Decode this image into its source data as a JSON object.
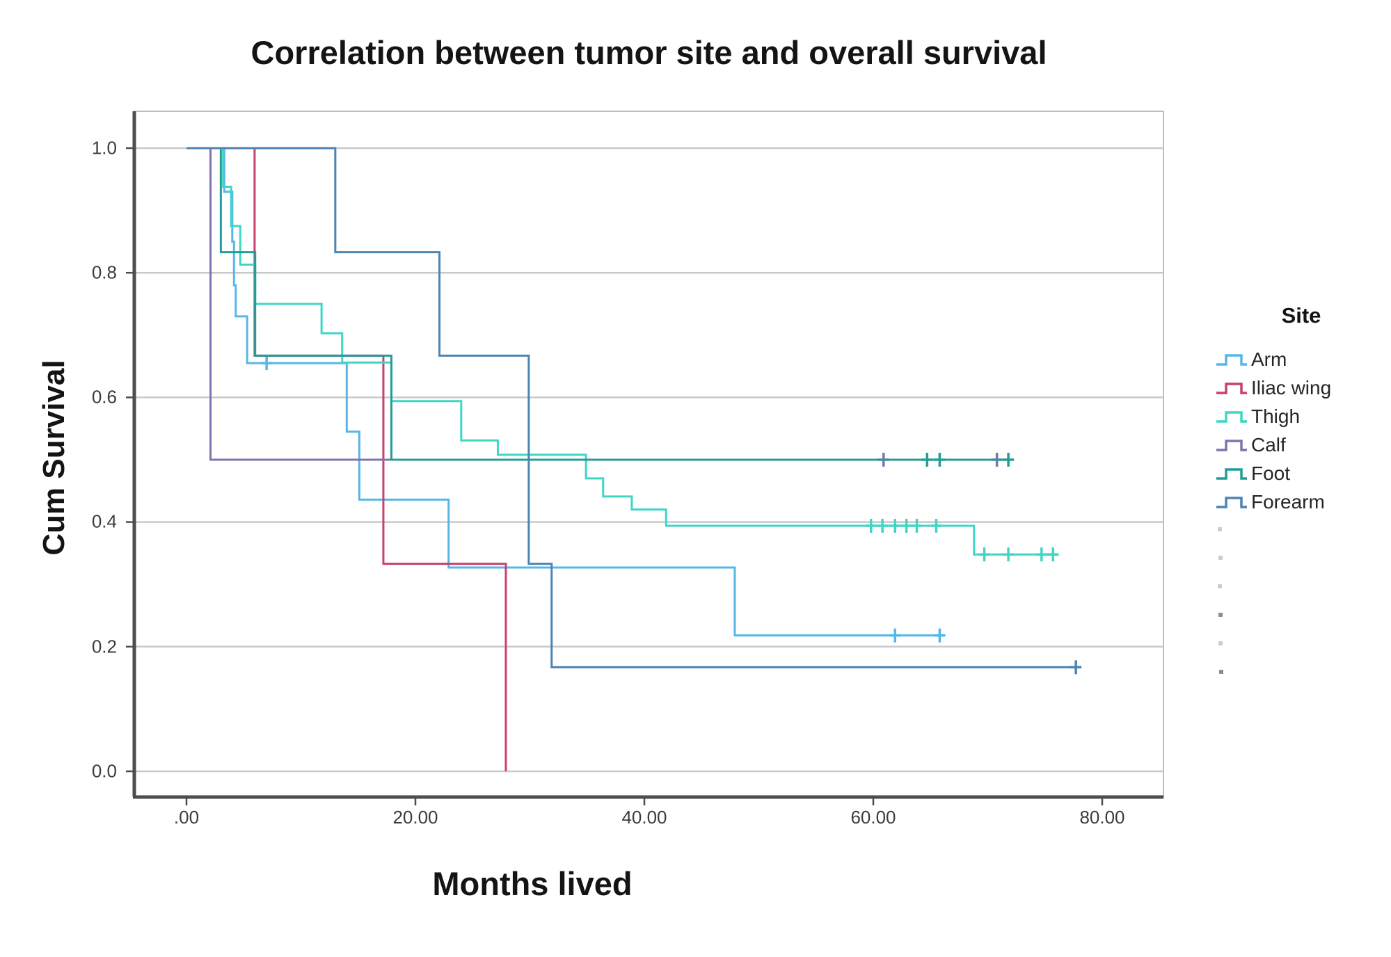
{
  "chart": {
    "title": "Correlation between tumor site and overall survival",
    "y_axis_title": "Cum Survival",
    "x_axis_title": "Months lived",
    "y_tick_labels": [
      "1.0",
      "0.8",
      "0.6",
      "0.4",
      "0.2",
      "0.0"
    ],
    "x_tick_labels": [
      ".00",
      "20.00",
      "40.00",
      "60.00",
      "80.00"
    ],
    "grid_color": "#c9c9c9",
    "frame_color": "#bfbfbf",
    "axis_color": "#4d4d4d",
    "tick_label_color": "#3c3c3c"
  },
  "chart_data": {
    "type": "line",
    "subtype": "kaplan-meier-step",
    "title": "Correlation between tumor site and overall survival",
    "xlabel": "Months lived",
    "ylabel": "Cum Survival",
    "xlim": [
      0,
      85
    ],
    "ylim": [
      0.0,
      1.0
    ],
    "x_ticks": [
      0,
      20,
      40,
      60,
      80
    ],
    "y_ticks": [
      1.0,
      0.8,
      0.6,
      0.4,
      0.2,
      0.0
    ],
    "grid": "horizontal-only",
    "legend": {
      "title": "Site",
      "position": "right"
    },
    "series": [
      {
        "name": "Arm",
        "color": "#56b7e6",
        "steps": [
          [
            0,
            1.0
          ],
          [
            3.3,
            0.93
          ],
          [
            4.0,
            0.85
          ],
          [
            4.15,
            0.78
          ],
          [
            4.3,
            0.73
          ],
          [
            5.3,
            0.655
          ],
          [
            14.0,
            0.545
          ],
          [
            15.1,
            0.436
          ],
          [
            22.9,
            0.327
          ],
          [
            47.9,
            0.218
          ]
        ],
        "censored": [
          [
            7.0,
            0.655
          ],
          [
            61.9,
            0.218
          ],
          [
            65.8,
            0.218
          ]
        ],
        "end_month": 66.3
      },
      {
        "name": "Iliac wing",
        "color": "#c5426e",
        "steps": [
          [
            0,
            1.0
          ],
          [
            5.95,
            0.667
          ],
          [
            17.2,
            0.333
          ],
          [
            27.9,
            0.0
          ]
        ],
        "censored": [],
        "end_month": 27.9
      },
      {
        "name": "Thigh",
        "color": "#3fd6c5",
        "steps": [
          [
            0,
            1.0
          ],
          [
            3.2,
            0.938
          ],
          [
            3.9,
            0.875
          ],
          [
            4.7,
            0.813
          ],
          [
            6.0,
            0.75
          ],
          [
            11.8,
            0.703
          ],
          [
            13.6,
            0.656
          ],
          [
            17.9,
            0.594
          ],
          [
            24.0,
            0.531
          ],
          [
            27.2,
            0.508
          ],
          [
            34.9,
            0.47
          ],
          [
            36.4,
            0.441
          ],
          [
            38.9,
            0.42
          ],
          [
            41.9,
            0.394
          ],
          [
            68.8,
            0.348
          ]
        ],
        "censored": [
          [
            59.8,
            0.394
          ],
          [
            60.8,
            0.394
          ],
          [
            61.9,
            0.394
          ],
          [
            62.9,
            0.394
          ],
          [
            63.8,
            0.394
          ],
          [
            65.5,
            0.394
          ],
          [
            69.7,
            0.348
          ],
          [
            71.8,
            0.348
          ],
          [
            74.7,
            0.348
          ],
          [
            75.7,
            0.348
          ]
        ],
        "end_month": 76.2
      },
      {
        "name": "Calf",
        "color": "#8173ae",
        "steps": [
          [
            0,
            1.0
          ],
          [
            2.1,
            0.5
          ]
        ],
        "censored": [
          [
            60.9,
            0.5
          ],
          [
            70.8,
            0.5
          ]
        ],
        "end_month": 71.3
      },
      {
        "name": "Foot",
        "color": "#249d96",
        "steps": [
          [
            0,
            1.0
          ],
          [
            3.0,
            0.833
          ],
          [
            6.0,
            0.667
          ],
          [
            17.9,
            0.5
          ]
        ],
        "censored": [
          [
            64.7,
            0.5
          ],
          [
            65.8,
            0.5
          ],
          [
            71.8,
            0.5
          ]
        ],
        "end_month": 72.2
      },
      {
        "name": "Forearm",
        "color": "#4e83b4",
        "steps": [
          [
            0,
            1.0
          ],
          [
            13.0,
            0.833
          ],
          [
            22.1,
            0.667
          ],
          [
            29.9,
            0.333
          ],
          [
            31.9,
            0.167
          ]
        ],
        "censored": [
          [
            77.7,
            0.167
          ]
        ],
        "end_month": 78.1
      }
    ]
  }
}
